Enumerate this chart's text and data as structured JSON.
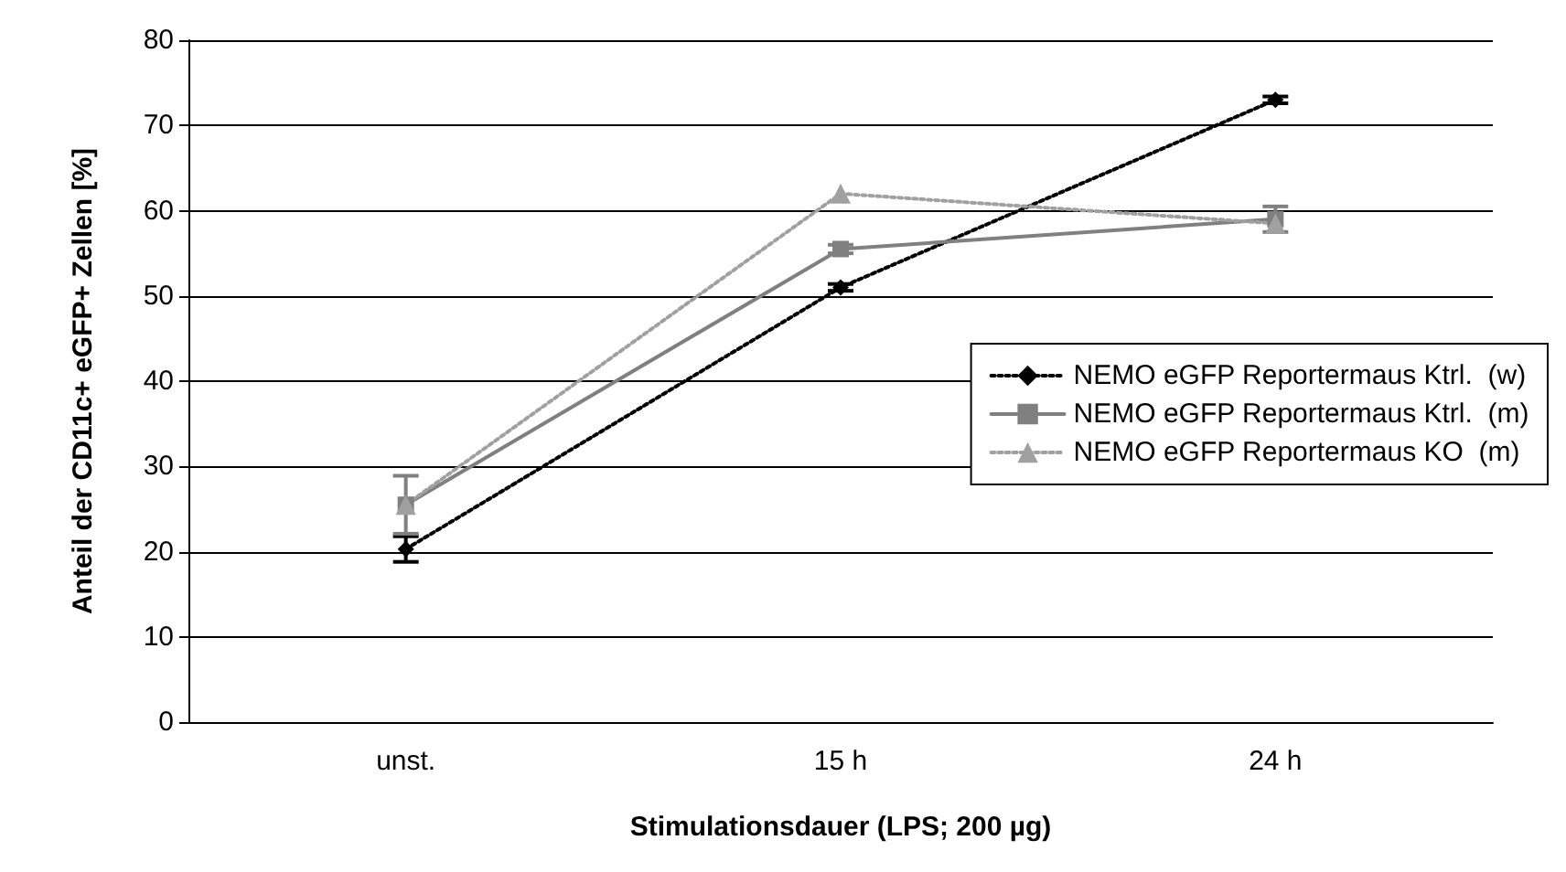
{
  "chart_data": {
    "type": "line",
    "xlabel": "Stimulationsdauer (LPS; 200 µg)",
    "ylabel": "Anteil der CD11c+ eGFP+ Zellen [%]",
    "categories": [
      "unst.",
      "15 h",
      "24 h"
    ],
    "ylim": [
      0,
      80
    ],
    "yticks": [
      0,
      10,
      20,
      30,
      40,
      50,
      60,
      70,
      80
    ],
    "grid": "y",
    "legend": "right",
    "series": [
      {
        "name": "NEMO eGFP Reportermaus Ktrl.  (w)",
        "color": "#000000",
        "marker": "diamond",
        "line_style": "dotted",
        "values": [
          20.3,
          51,
          73
        ],
        "errors": [
          1.5,
          0.4,
          0.4
        ]
      },
      {
        "name": "NEMO eGFP Reportermaus Ktrl.  (m)",
        "color": "#808080",
        "marker": "square",
        "line_style": "solid",
        "values": [
          25.5,
          55.5,
          59
        ],
        "errors": [
          3.4,
          0.5,
          1.5
        ]
      },
      {
        "name": "NEMO eGFP Reportermaus KO  (m)",
        "color": "#a0a0a0",
        "marker": "triangle",
        "line_style": "dotted",
        "values": [
          25.5,
          62,
          58.5
        ]
      }
    ]
  }
}
